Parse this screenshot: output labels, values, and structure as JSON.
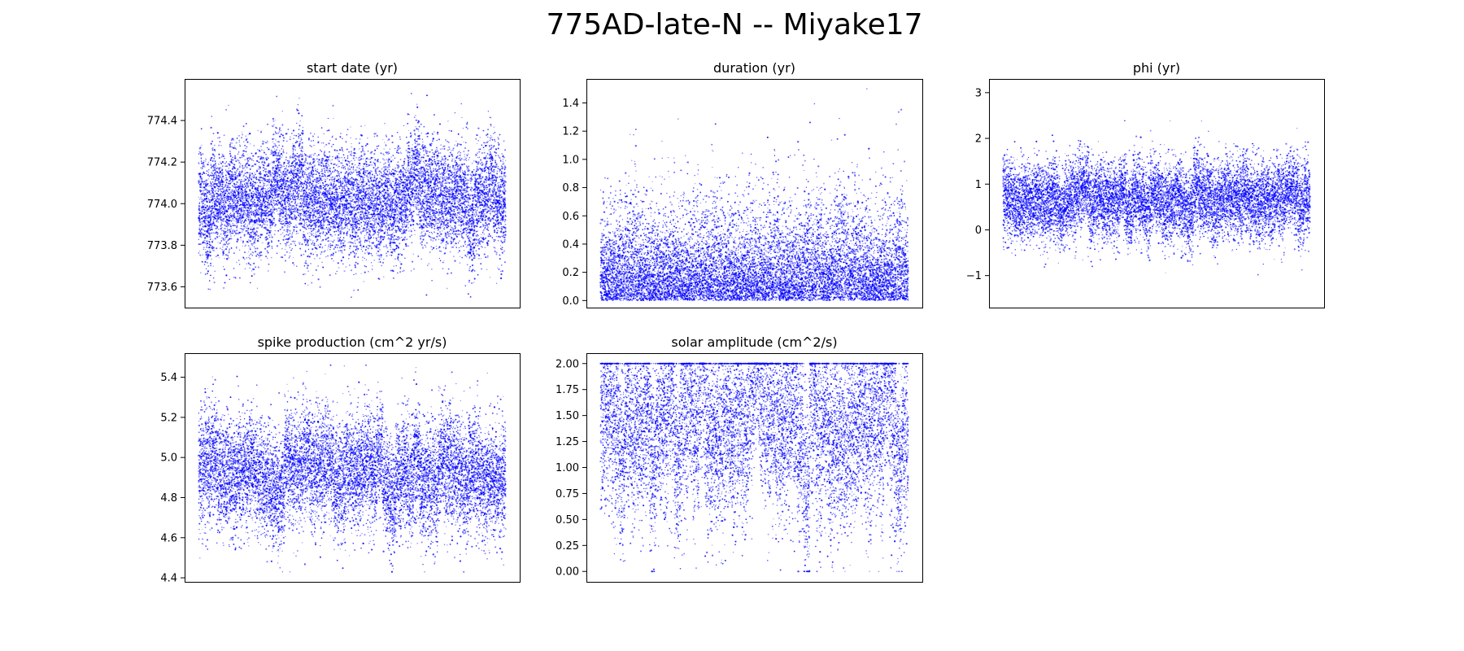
{
  "title": "775AD-late-N -- Miyake17",
  "chart_data": [
    {
      "type": "scatter",
      "title": "start date (yr)",
      "xlim": [
        -500,
        11500
      ],
      "ylim": [
        773.5,
        774.6
      ],
      "yticks": [
        773.6,
        773.8,
        774.0,
        774.2,
        774.4
      ],
      "ytick_labels": [
        "773.6",
        "773.8",
        "774.0",
        "774.2",
        "774.4"
      ],
      "n_points": 11000,
      "center": 774.03,
      "spread": 0.13,
      "min": 773.55,
      "max": 774.53,
      "color": "#0000ff"
    },
    {
      "type": "scatter",
      "title": "duration (yr)",
      "xlim": [
        -500,
        11500
      ],
      "ylim": [
        -0.05,
        1.57
      ],
      "yticks": [
        0.0,
        0.2,
        0.4,
        0.6,
        0.8,
        1.0,
        1.2,
        1.4
      ],
      "ytick_labels": [
        "0.0",
        "0.2",
        "0.4",
        "0.6",
        "0.8",
        "1.0",
        "1.2",
        "1.4"
      ],
      "n_points": 11000,
      "center": 0.3,
      "spread": 0.28,
      "min": 0.0,
      "max": 1.5,
      "color": "#0000ff"
    },
    {
      "type": "scatter",
      "title": "phi (yr)",
      "xlim": [
        -500,
        11500
      ],
      "ylim": [
        -1.7,
        3.3
      ],
      "yticks": [
        -1,
        0,
        1,
        2,
        3
      ],
      "ytick_labels": [
        "−1",
        "0",
        "1",
        "2",
        "3"
      ],
      "n_points": 11000,
      "center": 0.65,
      "spread": 0.42,
      "min": -1.5,
      "max": 3.1,
      "color": "#0000ff"
    },
    {
      "type": "scatter",
      "title": "spike production (cm^2 yr/s)",
      "xlim": [
        -500,
        11500
      ],
      "ylim": [
        4.38,
        5.52
      ],
      "yticks": [
        4.4,
        4.6,
        4.8,
        5.0,
        5.2,
        5.4
      ],
      "ytick_labels": [
        "4.4",
        "4.6",
        "4.8",
        "5.0",
        "5.2",
        "5.4"
      ],
      "n_points": 11000,
      "center": 4.92,
      "spread": 0.14,
      "min": 4.43,
      "max": 5.46,
      "color": "#0000ff"
    },
    {
      "type": "scatter",
      "title": "solar amplitude (cm^2/s)",
      "xlim": [
        -500,
        11500
      ],
      "ylim": [
        -0.1,
        2.1
      ],
      "yticks": [
        0.0,
        0.25,
        0.5,
        0.75,
        1.0,
        1.25,
        1.5,
        1.75,
        2.0
      ],
      "ytick_labels": [
        "0.00",
        "0.25",
        "0.50",
        "0.75",
        "1.00",
        "1.25",
        "1.50",
        "1.75",
        "2.00"
      ],
      "n_points": 11000,
      "center": 1.4,
      "spread": 0.45,
      "min": 0.0,
      "max": 2.0,
      "color": "#0000ff"
    }
  ]
}
